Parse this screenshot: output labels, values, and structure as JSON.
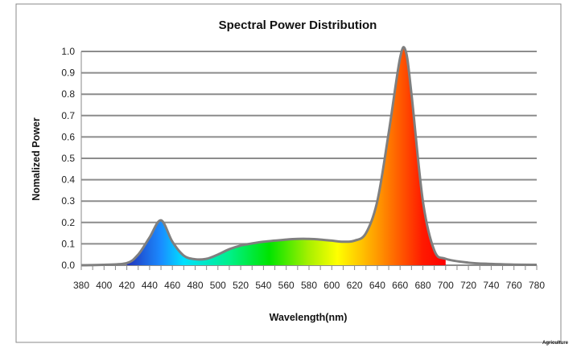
{
  "chart_data": {
    "type": "area",
    "title": "Spectral Power Distribution",
    "xlabel": "Wavelength(nm)",
    "ylabel": "Nomalized Power",
    "xlim": [
      380,
      780
    ],
    "ylim": [
      0,
      1.0
    ],
    "grid": "horizontal",
    "legend": "none",
    "x_ticks": [
      "380",
      "400",
      "420",
      "440",
      "460",
      "480",
      "500",
      "520",
      "540",
      "560",
      "580",
      "600",
      "620",
      "640",
      "660",
      "680",
      "700",
      "720",
      "740",
      "760",
      "780"
    ],
    "y_ticks": [
      "0.0",
      "0.1",
      "0.2",
      "0.3",
      "0.4",
      "0.5",
      "0.6",
      "0.7",
      "0.8",
      "0.9",
      "1.0"
    ],
    "series": [
      {
        "x": [
          380,
          400,
          420,
          430,
          440,
          450,
          460,
          470,
          480,
          490,
          500,
          510,
          520,
          530,
          540,
          550,
          560,
          570,
          580,
          590,
          600,
          610,
          620,
          630,
          640,
          650,
          660,
          665,
          670,
          680,
          690,
          700,
          720,
          740,
          760,
          780
        ],
        "y": [
          0,
          0.002,
          0.01,
          0.05,
          0.13,
          0.21,
          0.11,
          0.045,
          0.028,
          0.03,
          0.05,
          0.075,
          0.092,
          0.102,
          0.11,
          0.115,
          0.12,
          0.123,
          0.123,
          0.12,
          0.115,
          0.11,
          0.115,
          0.15,
          0.3,
          0.62,
          0.97,
          1.0,
          0.8,
          0.3,
          0.07,
          0.03,
          0.012,
          0.006,
          0.003,
          0.002
        ]
      }
    ],
    "fill_range_nm": [
      420,
      700
    ],
    "line_color": "#7f7f7f",
    "grid_color": "#8c8c8c",
    "fill_gradient": [
      {
        "nm": 420,
        "color": "#2233bb"
      },
      {
        "nm": 450,
        "color": "#1a8cff"
      },
      {
        "nm": 470,
        "color": "#00e0ff"
      },
      {
        "nm": 510,
        "color": "#00f08a"
      },
      {
        "nm": 545,
        "color": "#00e400"
      },
      {
        "nm": 580,
        "color": "#a8f000"
      },
      {
        "nm": 605,
        "color": "#ffff00"
      },
      {
        "nm": 640,
        "color": "#ff9a00"
      },
      {
        "nm": 680,
        "color": "#ff1a00"
      },
      {
        "nm": 700,
        "color": "#ff0000"
      }
    ]
  },
  "watermark": "Agriculture"
}
